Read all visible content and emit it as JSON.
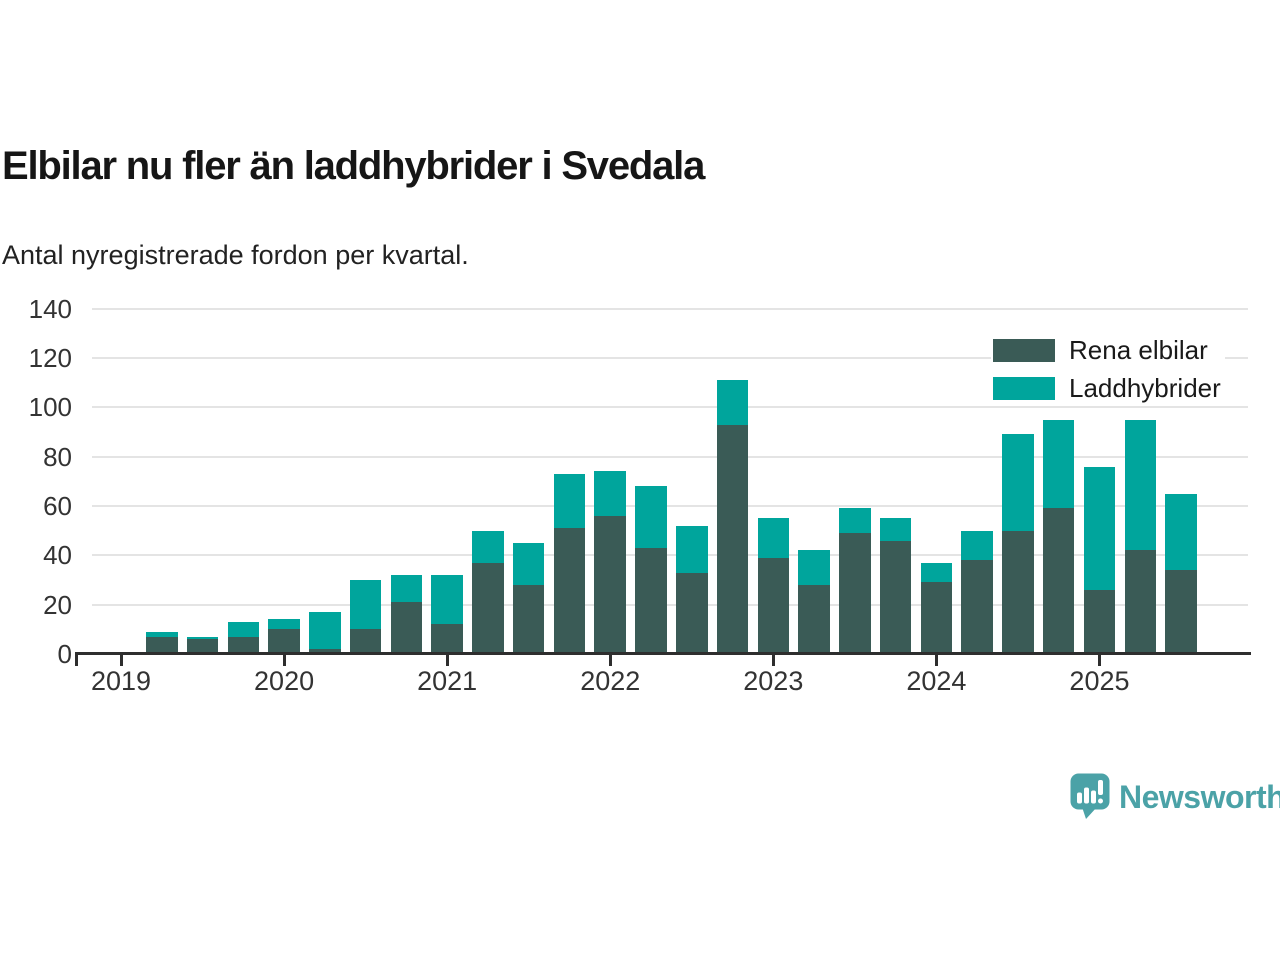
{
  "header": {
    "title": "Elbilar nu fler än laddhybrider i Svedala",
    "subtitle": "Antal nyregistrerade fordon per kvartal."
  },
  "chart_data": {
    "type": "bar",
    "stacked": true,
    "title": "Elbilar nu fler än laddhybrider i Svedala",
    "subtitle": "Antal nyregistrerade fordon per kvartal.",
    "categories": [
      "2019 Q1",
      "2019 Q2",
      "2019 Q3",
      "2019 Q4",
      "2020 Q1",
      "2020 Q2",
      "2020 Q3",
      "2020 Q4",
      "2021 Q1",
      "2021 Q2",
      "2021 Q3",
      "2021 Q4",
      "2022 Q1",
      "2022 Q2",
      "2022 Q3",
      "2022 Q4",
      "2023 Q1",
      "2023 Q2",
      "2023 Q3",
      "2023 Q4",
      "2024 Q1",
      "2024 Q2",
      "2024 Q3",
      "2024 Q4",
      "2025 Q1",
      "2025 Q2",
      "2025 Q3"
    ],
    "series": [
      {
        "name": "Rena elbilar",
        "color": "#3A5B56",
        "values": [
          0,
          7,
          6,
          7,
          10,
          2,
          10,
          21,
          12,
          37,
          28,
          51,
          56,
          43,
          33,
          93,
          39,
          28,
          49,
          46,
          29,
          38,
          50,
          59,
          26,
          42,
          34
        ]
      },
      {
        "name": "Laddhybrider",
        "color": "#00A59C",
        "values": [
          0,
          2,
          1,
          6,
          4,
          15,
          20,
          11,
          20,
          13,
          17,
          22,
          18,
          25,
          19,
          18,
          16,
          14,
          10,
          9,
          8,
          12,
          39,
          36,
          50,
          53,
          31
        ]
      }
    ],
    "totals": [
      0,
      9,
      7,
      13,
      14,
      17,
      30,
      32,
      32,
      50,
      45,
      73,
      74,
      68,
      52,
      111,
      55,
      42,
      59,
      55,
      37,
      50,
      89,
      95,
      76,
      95,
      65
    ],
    "ylim": [
      0,
      140
    ],
    "yticks": [
      0,
      20,
      40,
      60,
      80,
      100,
      120,
      140
    ],
    "xticks": [
      {
        "label": "2019",
        "index": 0
      },
      {
        "label": "2020",
        "index": 4
      },
      {
        "label": "2021",
        "index": 8
      },
      {
        "label": "2022",
        "index": 12
      },
      {
        "label": "2023",
        "index": 16
      },
      {
        "label": "2024",
        "index": 20
      },
      {
        "label": "2025",
        "index": 24
      }
    ],
    "xlabel": "",
    "ylabel": "",
    "grid": "horizontal",
    "legend_position": "top-right"
  },
  "colors": {
    "rena_elbilar": "#3A5B56",
    "laddhybrider": "#00A59C",
    "axis": "#2E2E2E",
    "grid": "#E4E4E4",
    "brand": "#4BA2A7"
  },
  "footer": {
    "brand": "Newsworthy"
  }
}
